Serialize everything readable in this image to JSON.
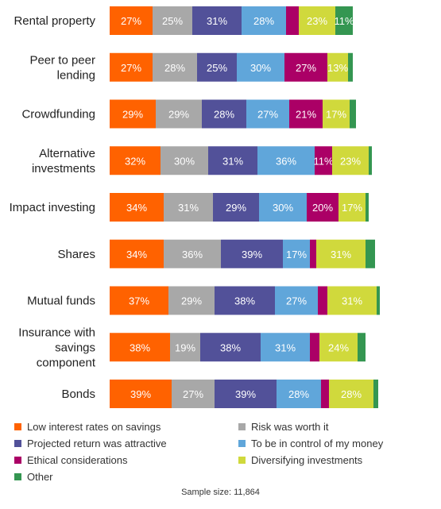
{
  "chart_data": {
    "type": "bar",
    "stacked": true,
    "orientation": "horizontal",
    "categories": [
      "Rental property",
      "Peer to peer lending",
      "Crowdfunding",
      "Alternative investments",
      "Impact investing",
      "Shares",
      "Mutual funds",
      "Insurance with savings component",
      "Bonds"
    ],
    "category_lines": [
      [
        "Rental property"
      ],
      [
        "Peer to peer",
        "lending"
      ],
      [
        "Crowdfunding"
      ],
      [
        "Alternative",
        "investments"
      ],
      [
        "Impact investing"
      ],
      [
        "Shares"
      ],
      [
        "Mutual funds"
      ],
      [
        "Insurance with",
        "savings",
        "component"
      ],
      [
        "Bonds"
      ]
    ],
    "series": [
      {
        "name": "Low interest rates on savings",
        "color": "#ff6200",
        "values": [
          27,
          27,
          29,
          32,
          34,
          34,
          37,
          38,
          39
        ]
      },
      {
        "name": "Risk was worth it",
        "color": "#a8a8a8",
        "values": [
          25,
          28,
          29,
          30,
          31,
          36,
          29,
          19,
          27
        ]
      },
      {
        "name": "Projected return was attractive",
        "color": "#525199",
        "values": [
          31,
          25,
          28,
          31,
          29,
          39,
          38,
          38,
          39
        ]
      },
      {
        "name": "To be in control of my money",
        "color": "#60a6da",
        "values": [
          28,
          30,
          27,
          36,
          30,
          17,
          27,
          31,
          28
        ]
      },
      {
        "name": "Ethical considerations",
        "color": "#ab0066",
        "values": [
          8,
          27,
          21,
          11,
          20,
          4,
          6,
          6,
          5
        ]
      },
      {
        "name": "Diversifying investments",
        "color": "#d0d93c",
        "values": [
          23,
          13,
          17,
          23,
          17,
          31,
          31,
          24,
          28
        ]
      },
      {
        "name": "Other",
        "color": "#349651",
        "values": [
          11,
          3,
          4,
          2,
          2,
          6,
          2,
          5,
          3
        ]
      }
    ],
    "label_threshold": 11,
    "grid": false,
    "legend_position": "bottom"
  },
  "footnote": "Sample size: 11,864"
}
